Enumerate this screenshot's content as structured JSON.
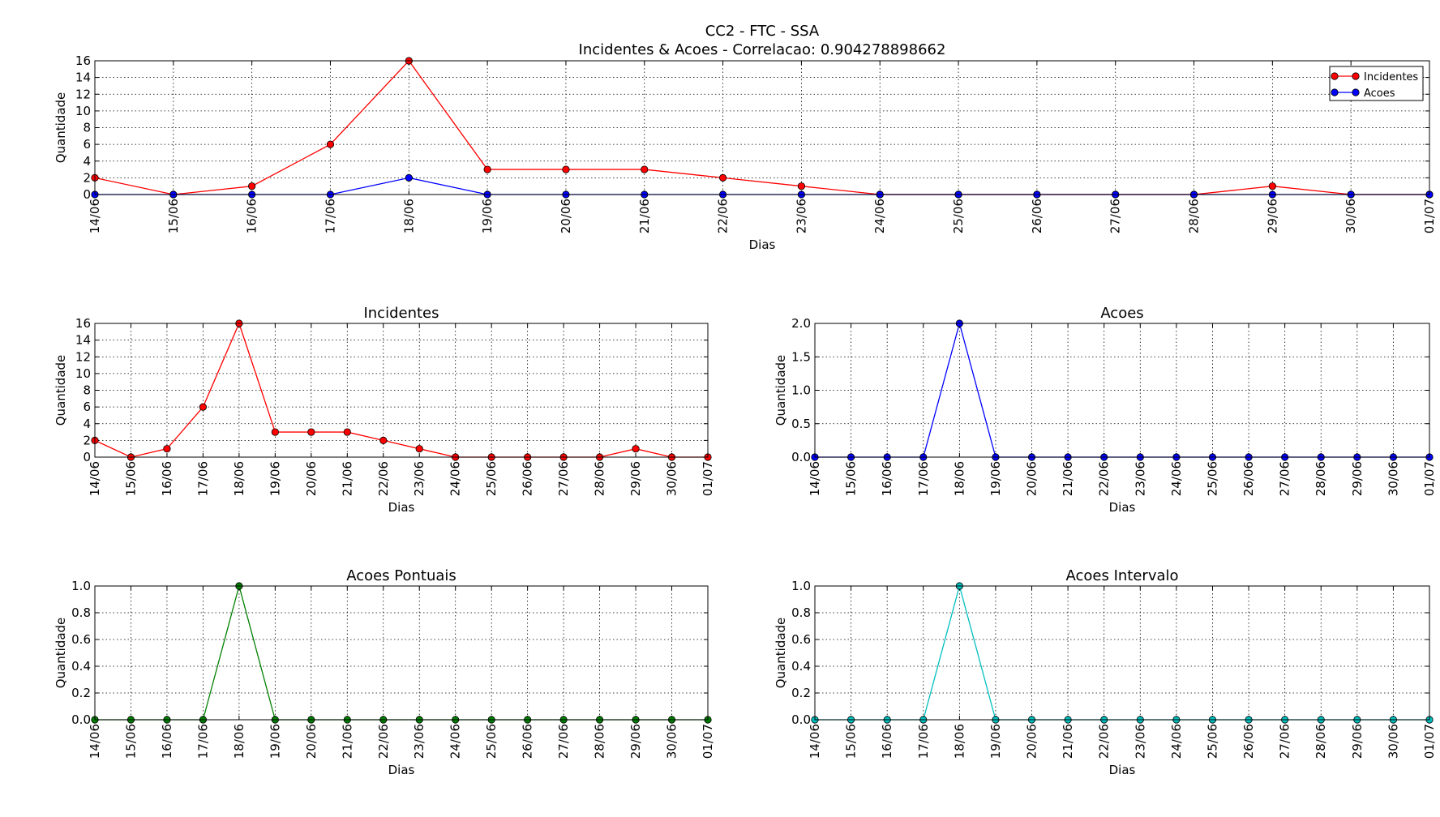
{
  "figure": {
    "suptitle_line1": "CC2 - FTC - SSA",
    "suptitle_line2": "Incidentes & Acoes - Correlacao: 0.904278898662"
  },
  "chart_data": [
    {
      "id": "combined",
      "type": "line",
      "title": "",
      "xlabel": "Dias",
      "ylabel": "Quantidade",
      "categories": [
        "14/06",
        "15/06",
        "16/06",
        "17/06",
        "18/06",
        "19/06",
        "20/06",
        "21/06",
        "22/06",
        "23/06",
        "24/06",
        "25/06",
        "26/06",
        "27/06",
        "28/06",
        "29/06",
        "30/06",
        "01/07"
      ],
      "ylim": [
        0,
        16
      ],
      "yticks": [
        "0",
        "2",
        "4",
        "6",
        "8",
        "10",
        "12",
        "14",
        "16"
      ],
      "grid": true,
      "legend": "top-right",
      "series": [
        {
          "name": "Incidentes",
          "color": "#ff0000",
          "values": [
            2,
            0,
            1,
            6,
            16,
            3,
            3,
            3,
            2,
            1,
            0,
            0,
            0,
            0,
            0,
            1,
            0,
            0
          ]
        },
        {
          "name": "Acoes",
          "color": "#0000ff",
          "values": [
            0,
            0,
            0,
            0,
            2,
            0,
            0,
            0,
            0,
            0,
            0,
            0,
            0,
            0,
            0,
            0,
            0,
            0
          ]
        }
      ]
    },
    {
      "id": "incidentes",
      "type": "line",
      "title": "Incidentes",
      "xlabel": "Dias",
      "ylabel": "Quantidade",
      "categories": [
        "14/06",
        "15/06",
        "16/06",
        "17/06",
        "18/06",
        "19/06",
        "20/06",
        "21/06",
        "22/06",
        "23/06",
        "24/06",
        "25/06",
        "26/06",
        "27/06",
        "28/06",
        "29/06",
        "30/06",
        "01/07"
      ],
      "ylim": [
        0,
        16
      ],
      "yticks": [
        "0",
        "2",
        "4",
        "6",
        "8",
        "10",
        "12",
        "14",
        "16"
      ],
      "grid": true,
      "series": [
        {
          "color": "#ff0000",
          "values": [
            2,
            0,
            1,
            6,
            16,
            3,
            3,
            3,
            2,
            1,
            0,
            0,
            0,
            0,
            0,
            1,
            0,
            0
          ]
        }
      ]
    },
    {
      "id": "acoes",
      "type": "line",
      "title": "Acoes",
      "xlabel": "Dias",
      "ylabel": "Quantidade",
      "categories": [
        "14/06",
        "15/06",
        "16/06",
        "17/06",
        "18/06",
        "19/06",
        "20/06",
        "21/06",
        "22/06",
        "23/06",
        "24/06",
        "25/06",
        "26/06",
        "27/06",
        "28/06",
        "29/06",
        "30/06",
        "01/07"
      ],
      "ylim": [
        0,
        2
      ],
      "yticks": [
        "0.0",
        "0.5",
        "1.0",
        "1.5",
        "2.0"
      ],
      "grid": true,
      "series": [
        {
          "color": "#0000ff",
          "values": [
            0,
            0,
            0,
            0,
            2,
            0,
            0,
            0,
            0,
            0,
            0,
            0,
            0,
            0,
            0,
            0,
            0,
            0
          ]
        }
      ]
    },
    {
      "id": "acoes-pontuais",
      "type": "line",
      "title": "Acoes Pontuais",
      "xlabel": "Dias",
      "ylabel": "Quantidade",
      "categories": [
        "14/06",
        "15/06",
        "16/06",
        "17/06",
        "18/06",
        "19/06",
        "20/06",
        "21/06",
        "22/06",
        "23/06",
        "24/06",
        "25/06",
        "26/06",
        "27/06",
        "28/06",
        "29/06",
        "30/06",
        "01/07"
      ],
      "ylim": [
        0,
        1
      ],
      "yticks": [
        "0.0",
        "0.2",
        "0.4",
        "0.6",
        "0.8",
        "1.0"
      ],
      "grid": true,
      "series": [
        {
          "color": "#008000",
          "values": [
            0,
            0,
            0,
            0,
            1,
            0,
            0,
            0,
            0,
            0,
            0,
            0,
            0,
            0,
            0,
            0,
            0,
            0
          ]
        }
      ]
    },
    {
      "id": "acoes-intervalo",
      "type": "line",
      "title": "Acoes Intervalo",
      "xlabel": "Dias",
      "ylabel": "Quantidade",
      "categories": [
        "14/06",
        "15/06",
        "16/06",
        "17/06",
        "18/06",
        "19/06",
        "20/06",
        "21/06",
        "22/06",
        "23/06",
        "24/06",
        "25/06",
        "26/06",
        "27/06",
        "28/06",
        "29/06",
        "30/06",
        "01/07"
      ],
      "ylim": [
        0,
        1
      ],
      "yticks": [
        "0.0",
        "0.2",
        "0.4",
        "0.6",
        "0.8",
        "1.0"
      ],
      "grid": true,
      "series": [
        {
          "color": "#00bfbf",
          "values": [
            0,
            0,
            0,
            0,
            1,
            0,
            0,
            0,
            0,
            0,
            0,
            0,
            0,
            0,
            0,
            0,
            0,
            0
          ]
        }
      ]
    }
  ]
}
